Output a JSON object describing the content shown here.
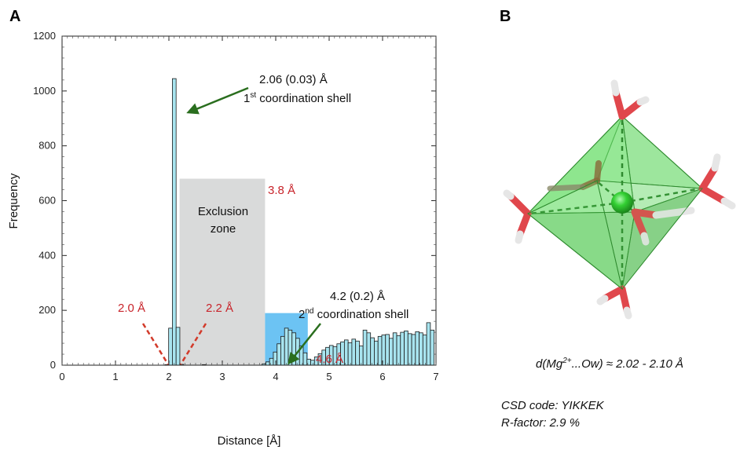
{
  "panels": {
    "a_label": "A",
    "b_label": "B"
  },
  "chart_data": {
    "type": "bar",
    "xlabel": "Distance [Å]",
    "ylabel": "Frequency",
    "xlim": [
      0,
      7
    ],
    "ylim": [
      0,
      1200
    ],
    "xticks": [
      "0",
      "1",
      "2",
      "3",
      "4",
      "5",
      "6",
      "7"
    ],
    "yticks": [
      "0",
      "200",
      "400",
      "600",
      "800",
      "1000",
      "1200"
    ],
    "bin_width": 0.07,
    "bins": [
      {
        "x": 1.96,
        "y": 2
      },
      {
        "x": 2.03,
        "y": 135
      },
      {
        "x": 2.1,
        "y": 1045
      },
      {
        "x": 2.17,
        "y": 138
      },
      {
        "x": 2.24,
        "y": 3
      },
      {
        "x": 2.66,
        "y": 2
      },
      {
        "x": 3.78,
        "y": 5
      },
      {
        "x": 3.85,
        "y": 12
      },
      {
        "x": 3.92,
        "y": 25
      },
      {
        "x": 3.99,
        "y": 48
      },
      {
        "x": 4.06,
        "y": 78
      },
      {
        "x": 4.13,
        "y": 105
      },
      {
        "x": 4.2,
        "y": 135
      },
      {
        "x": 4.27,
        "y": 128
      },
      {
        "x": 4.34,
        "y": 118
      },
      {
        "x": 4.41,
        "y": 98
      },
      {
        "x": 4.48,
        "y": 70
      },
      {
        "x": 4.55,
        "y": 45
      },
      {
        "x": 4.62,
        "y": 22
      },
      {
        "x": 4.69,
        "y": 18
      },
      {
        "x": 4.76,
        "y": 30
      },
      {
        "x": 4.83,
        "y": 42
      },
      {
        "x": 4.9,
        "y": 55
      },
      {
        "x": 4.97,
        "y": 65
      },
      {
        "x": 5.04,
        "y": 72
      },
      {
        "x": 5.11,
        "y": 68
      },
      {
        "x": 5.18,
        "y": 78
      },
      {
        "x": 5.25,
        "y": 85
      },
      {
        "x": 5.32,
        "y": 92
      },
      {
        "x": 5.39,
        "y": 82
      },
      {
        "x": 5.46,
        "y": 95
      },
      {
        "x": 5.53,
        "y": 88
      },
      {
        "x": 5.6,
        "y": 70
      },
      {
        "x": 5.67,
        "y": 128
      },
      {
        "x": 5.74,
        "y": 118
      },
      {
        "x": 5.81,
        "y": 100
      },
      {
        "x": 5.88,
        "y": 88
      },
      {
        "x": 5.95,
        "y": 105
      },
      {
        "x": 6.02,
        "y": 110
      },
      {
        "x": 6.09,
        "y": 112
      },
      {
        "x": 6.16,
        "y": 98
      },
      {
        "x": 6.23,
        "y": 118
      },
      {
        "x": 6.3,
        "y": 108
      },
      {
        "x": 6.37,
        "y": 120
      },
      {
        "x": 6.44,
        "y": 125
      },
      {
        "x": 6.51,
        "y": 115
      },
      {
        "x": 6.58,
        "y": 112
      },
      {
        "x": 6.65,
        "y": 122
      },
      {
        "x": 6.72,
        "y": 118
      },
      {
        "x": 6.79,
        "y": 110
      },
      {
        "x": 6.86,
        "y": 155
      },
      {
        "x": 6.93,
        "y": 128
      }
    ],
    "exclusion_zone": {
      "x0": 2.2,
      "x1": 3.8,
      "y1": 680,
      "label_line1": "Exclusion",
      "label_line2": "zone",
      "color": "#d9dada"
    },
    "second_shell_box": {
      "x0": 3.8,
      "x1": 4.6,
      "y1": 190,
      "color": "#6cc3f3"
    },
    "bar_color": "#a8e4ef",
    "arrow_color": "#2a6e1e",
    "dash_color": "#d23a2a",
    "annotations": {
      "first_shell_value": "2.06 (0.03) Å",
      "first_shell_prefix": "1",
      "first_shell_sup": "st",
      "first_shell_rest": " coordination shell",
      "second_shell_value": "4.2 (0.2) Å",
      "second_shell_prefix": "2",
      "second_shell_sup": "nd",
      "second_shell_rest": " coordination shell",
      "lbl_2_0": "2.0 Å",
      "lbl_2_2": "2.2 Å",
      "lbl_3_8": "3.8 Å",
      "lbl_4_6": "4.6 Å"
    }
  },
  "panel_b": {
    "distance_pre": "d(Mg",
    "distance_sup": "2+",
    "distance_post": "...Ow) ≈ 2.02 - 2.10 Å",
    "csd_code": "CSD code: YIKKEK",
    "r_factor": "R-factor: 2.9 %",
    "colors": {
      "octahedron": "#5fd65f",
      "edge": "#2f8a2f",
      "ion": "#2ecf2e",
      "oxygen": "#e0474c",
      "hydrogen": "#e6e6e6"
    }
  }
}
